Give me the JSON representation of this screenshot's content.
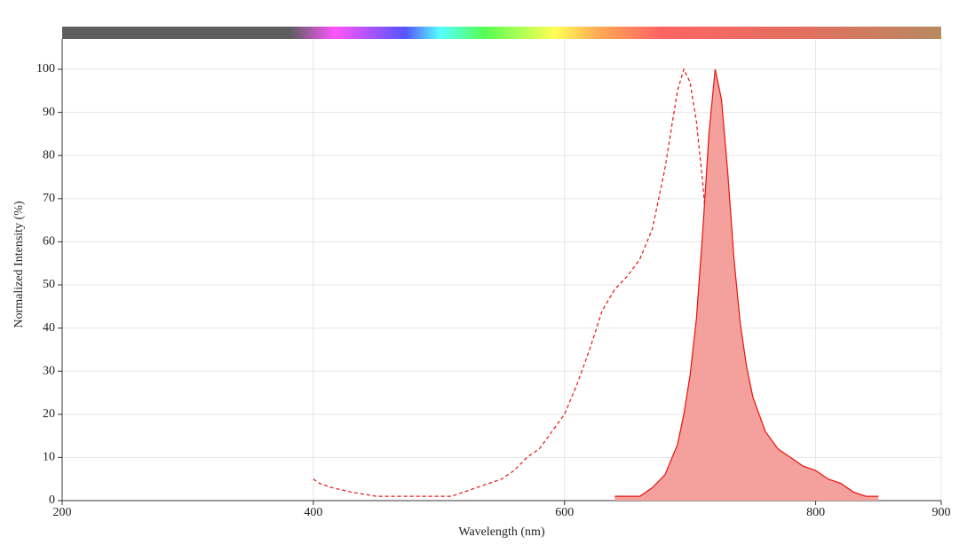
{
  "chart_data": {
    "type": "line",
    "x_label": "Wavelength (nm)",
    "y_label": "Normalized Intensity (%)",
    "xlim": [
      200,
      900
    ],
    "xticks": [
      200,
      400,
      600,
      800,
      900
    ],
    "ylim": [
      0,
      107
    ],
    "yticks": [
      0,
      10,
      20,
      30,
      40,
      50,
      60,
      70,
      80,
      90,
      100
    ],
    "grid": true,
    "series": [
      {
        "color": "#e8120c",
        "dashed": true,
        "filled": false,
        "x": [
          400,
          405,
          415,
          430,
          450,
          470,
          490,
          510,
          530,
          550,
          560,
          570,
          580,
          590,
          600,
          610,
          620,
          630,
          640,
          650,
          660,
          670,
          680,
          685,
          690,
          695,
          700,
          705,
          710,
          715,
          720,
          725,
          730,
          740,
          750,
          760,
          770,
          790
        ],
        "values": [
          5,
          4,
          3,
          2,
          1,
          1,
          1,
          1,
          3,
          5,
          7,
          10,
          12,
          16,
          20,
          27,
          35,
          44,
          49,
          52,
          56,
          63,
          77,
          86,
          95,
          100,
          97,
          88,
          74,
          56,
          40,
          26,
          16,
          8,
          4,
          2,
          1,
          1
        ]
      },
      {
        "color": "#e8120c",
        "dashed": false,
        "filled": true,
        "fill_color": "#f4a09c",
        "x": [
          640,
          660,
          670,
          680,
          690,
          695,
          700,
          705,
          710,
          715,
          720,
          725,
          730,
          735,
          740,
          745,
          750,
          760,
          770,
          780,
          790,
          800,
          810,
          820,
          830,
          840,
          850
        ],
        "values": [
          1,
          1,
          3,
          6,
          13,
          20,
          29,
          42,
          62,
          85,
          100,
          93,
          76,
          56,
          41,
          31,
          24,
          16,
          12,
          10,
          8,
          7,
          5,
          4,
          2,
          1,
          1
        ]
      }
    ]
  }
}
